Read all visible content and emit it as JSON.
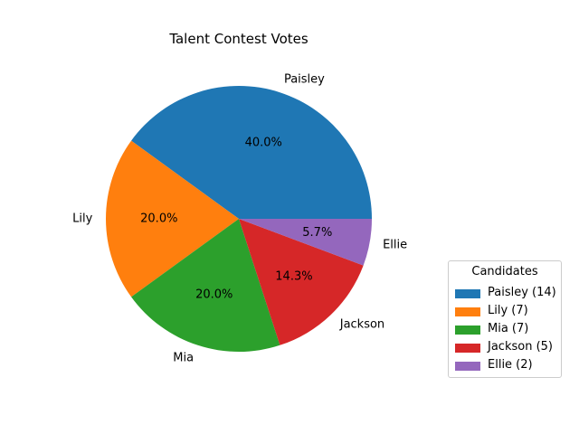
{
  "chart_data": {
    "type": "pie",
    "title": "Talent Contest Votes",
    "categories": [
      "Paisley",
      "Lily",
      "Mia",
      "Jackson",
      "Ellie"
    ],
    "values": [
      14,
      7,
      7,
      5,
      2
    ],
    "pct_labels": [
      "40.0%",
      "20.0%",
      "20.0%",
      "14.3%",
      "5.7%"
    ],
    "colors": [
      "#1f77b4",
      "#ff7f0e",
      "#2ca02c",
      "#d62728",
      "#9467bd"
    ],
    "legend": {
      "title": "Candidates",
      "entries": [
        "Paisley (14)",
        "Lily (7)",
        "Mia (7)",
        "Jackson (5)",
        "Ellie (2)"
      ],
      "placement": "lower-right"
    }
  }
}
